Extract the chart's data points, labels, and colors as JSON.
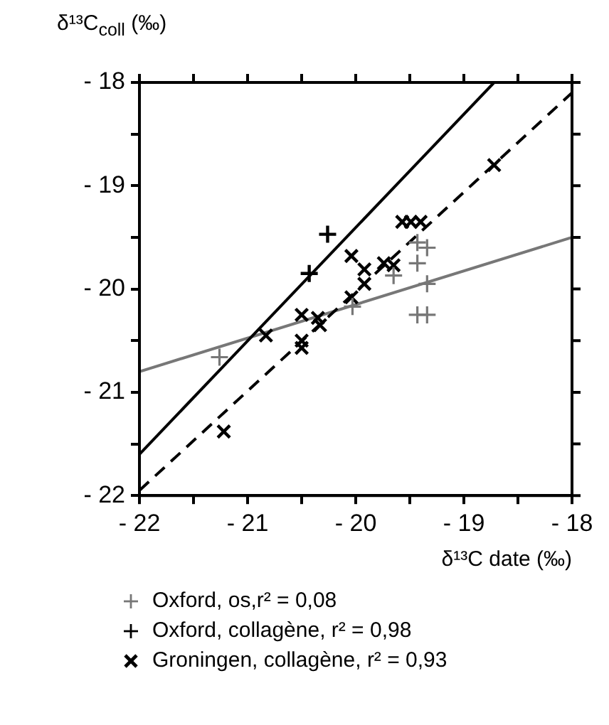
{
  "chart_data": {
    "type": "scatter",
    "ylabel": "δ¹³C$_{coll}$ (‰)",
    "xlabel": "δ¹³C date (‰)",
    "xlim": [
      -22,
      -18
    ],
    "ylim": [
      -22,
      -18
    ],
    "xticks": [
      {
        "value": -22,
        "label": "- 22"
      },
      {
        "value": -21.5,
        "label": null
      },
      {
        "value": -21,
        "label": "- 21"
      },
      {
        "value": -20.5,
        "label": null
      },
      {
        "value": -20,
        "label": "- 20"
      },
      {
        "value": -19.5,
        "label": null
      },
      {
        "value": -19,
        "label": "- 19"
      },
      {
        "value": -18.5,
        "label": null
      },
      {
        "value": -18,
        "label": "- 18"
      }
    ],
    "yticks": [
      {
        "value": -22,
        "label": "- 22"
      },
      {
        "value": -21.5,
        "label": null
      },
      {
        "value": -21,
        "label": "- 21"
      },
      {
        "value": -20.5,
        "label": null
      },
      {
        "value": -20,
        "label": "- 20"
      },
      {
        "value": -19.5,
        "label": null
      },
      {
        "value": -19,
        "label": "- 19"
      },
      {
        "value": -18.5,
        "label": null
      },
      {
        "value": -18,
        "label": "- 18"
      }
    ],
    "grid": false,
    "legend": "bottom",
    "series": [
      {
        "name": "Oxford, os,r² = 0,08",
        "marker": "plus",
        "color": "#777777",
        "x": [
          -21.26,
          -20.03,
          -19.43,
          -19.34,
          -19.43,
          -19.65,
          -19.34,
          -19.43,
          -19.34
        ],
        "values": [
          -20.66,
          -20.17,
          -19.55,
          -19.6,
          -19.75,
          -19.87,
          -19.95,
          -20.25,
          -20.25
        ]
      },
      {
        "name": "Oxford, collagène, r² = 0,98",
        "marker": "plus",
        "color": "#000000",
        "x": [
          -20.26,
          -20.43
        ],
        "values": [
          -19.47,
          -19.85
        ]
      },
      {
        "name": "Groningen, collagène, r² = 0,93",
        "marker": "cross",
        "color": "#000000",
        "x": [
          -20.04,
          -19.92,
          -19.92,
          -20.04,
          -19.74,
          -19.65,
          -19.57,
          -19.49,
          -19.4,
          -18.72,
          -20.5,
          -20.35,
          -20.33,
          -20.5,
          -20.5,
          -20.83,
          -21.22
        ],
        "values": [
          -19.68,
          -19.81,
          -19.95,
          -20.08,
          -19.75,
          -19.77,
          -19.35,
          -19.35,
          -19.35,
          -18.8,
          -20.25,
          -20.28,
          -20.35,
          -20.5,
          -20.57,
          -20.45,
          -21.38
        ]
      },
      {
        "type": "line",
        "color": "#000000",
        "line_style": "solid",
        "marker": "none",
        "x": [
          -22,
          -18.72
        ],
        "values": [
          -21.6,
          -18
        ]
      },
      {
        "type": "line",
        "color": "#000000",
        "line_style": "dashed",
        "marker": "none",
        "x": [
          -22,
          -18
        ],
        "values": [
          -21.95,
          -18.1
        ]
      },
      {
        "type": "line",
        "color": "#777777",
        "line_style": "solid",
        "marker": "none",
        "x": [
          -22,
          -18
        ],
        "values": [
          -20.8,
          -19.5
        ]
      }
    ]
  }
}
